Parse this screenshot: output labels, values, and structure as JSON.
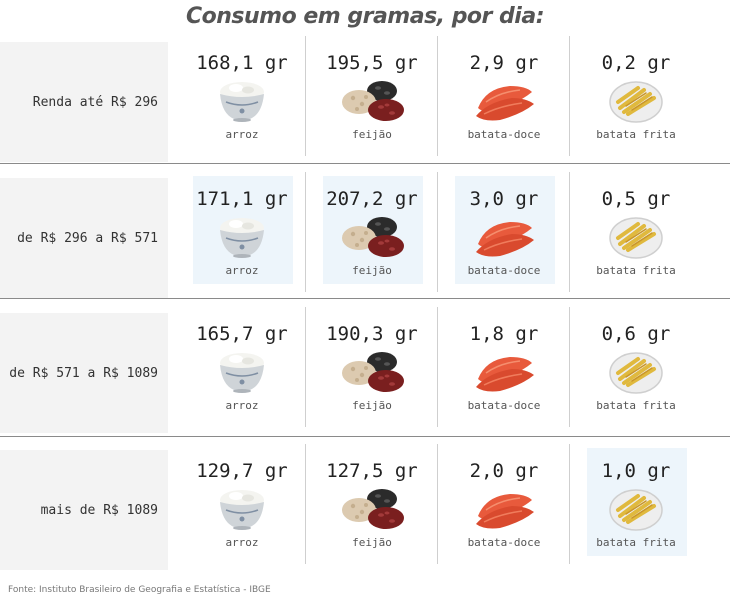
{
  "title": "Consumo em gramas, por dia:",
  "source": "Fonte: Instituto Brasileiro de Geografia e Estatística - IBGE",
  "colors": {
    "highlight": "#edf5fb",
    "row_label_bg": "#f3f3f3",
    "separator": "#8a8a8a"
  },
  "foods": [
    {
      "name": "arroz",
      "icon": "rice-bowl-icon"
    },
    {
      "name": "feijão",
      "icon": "beans-icon"
    },
    {
      "name": "batata-doce",
      "icon": "sweet-potato-icon"
    },
    {
      "name": "batata frita",
      "icon": "french-fries-icon"
    }
  ],
  "rows": [
    {
      "label": "Renda até R$ 296",
      "cells": [
        "168,1 gr",
        "195,5 gr",
        "2,9 gr",
        "0,2 gr"
      ],
      "highlight": [
        false,
        false,
        false,
        false
      ]
    },
    {
      "label": "de R$ 296 a R$ 571",
      "cells": [
        "171,1 gr",
        "207,2 gr",
        "3,0 gr",
        "0,5 gr"
      ],
      "highlight": [
        true,
        true,
        true,
        false
      ]
    },
    {
      "label": "de R$ 571 a R$ 1089",
      "cells": [
        "165,7 gr",
        "190,3 gr",
        "1,8 gr",
        "0,6 gr"
      ],
      "highlight": [
        false,
        false,
        false,
        false
      ]
    },
    {
      "label": "mais de R$ 1089",
      "cells": [
        "129,7 gr",
        "127,5 gr",
        "2,0 gr",
        "1,0 gr"
      ],
      "highlight": [
        false,
        false,
        false,
        true
      ]
    }
  ],
  "chart_data": {
    "type": "table",
    "title": "Consumo em gramas, por dia:",
    "columns": [
      "arroz",
      "feijão",
      "batata-doce",
      "batata frita"
    ],
    "rows": [
      "Renda até R$ 296",
      "de R$ 296 a R$ 571",
      "de R$ 571 a R$ 1089",
      "mais de R$ 1089"
    ],
    "unit": "gr",
    "values": [
      [
        168.1,
        195.5,
        2.9,
        0.2
      ],
      [
        171.1,
        207.2,
        3.0,
        0.5
      ],
      [
        165.7,
        190.3,
        1.8,
        0.6
      ],
      [
        129.7,
        127.5,
        2.0,
        1.0
      ]
    ]
  }
}
